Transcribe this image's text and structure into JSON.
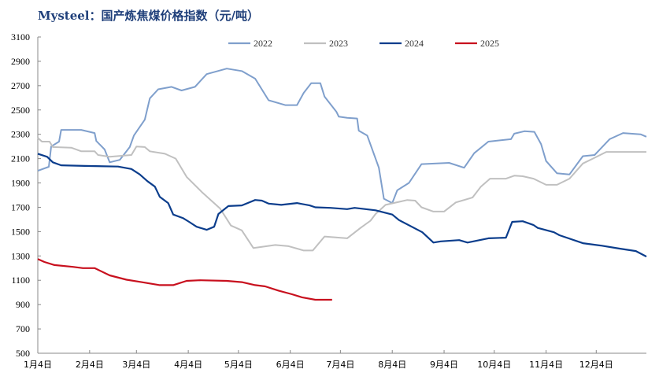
{
  "chart_data": {
    "type": "line",
    "title": "Mysteel：国产炼焦煤价格指数（元/吨）",
    "xlabel": "",
    "ylabel": "",
    "ylim": [
      500,
      3100
    ],
    "yticks": [
      500,
      700,
      900,
      1100,
      1300,
      1500,
      1700,
      1900,
      2100,
      2300,
      2500,
      2700,
      2900,
      3100
    ],
    "xlim_day_of_year": [
      0,
      364
    ],
    "xticks": [
      {
        "label": "1月4日",
        "day": 0
      },
      {
        "label": "2月4日",
        "day": 31
      },
      {
        "label": "3月4日",
        "day": 59
      },
      {
        "label": "4月4日",
        "day": 90
      },
      {
        "label": "5月4日",
        "day": 120
      },
      {
        "label": "6月4日",
        "day": 151
      },
      {
        "label": "7月4日",
        "day": 181
      },
      {
        "label": "8月4日",
        "day": 212
      },
      {
        "label": "9月4日",
        "day": 243
      },
      {
        "label": "10月4日",
        "day": 273
      },
      {
        "label": "11月4日",
        "day": 304
      },
      {
        "label": "12月4日",
        "day": 334
      }
    ],
    "grid": false,
    "legend_position": "top-center",
    "series": [
      {
        "name": "2022",
        "color": "#7f9fcc",
        "width": 2,
        "points": [
          [
            0,
            2000
          ],
          [
            6.6,
            2033
          ],
          [
            8,
            2200
          ],
          [
            12.7,
            2240
          ],
          [
            14,
            2336
          ],
          [
            26,
            2336
          ],
          [
            34,
            2310
          ],
          [
            35,
            2245
          ],
          [
            40,
            2175
          ],
          [
            43,
            2070
          ],
          [
            49,
            2090
          ],
          [
            55,
            2195
          ],
          [
            57.5,
            2290
          ],
          [
            64,
            2420
          ],
          [
            67,
            2595
          ],
          [
            72,
            2670
          ],
          [
            80,
            2690
          ],
          [
            86,
            2660
          ],
          [
            94,
            2690
          ],
          [
            101,
            2795
          ],
          [
            113,
            2840
          ],
          [
            122,
            2820
          ],
          [
            130,
            2757
          ],
          [
            138,
            2580
          ],
          [
            148,
            2540
          ],
          [
            155,
            2540
          ],
          [
            159,
            2640
          ],
          [
            163.5,
            2720
          ],
          [
            169,
            2720
          ],
          [
            171.5,
            2610
          ],
          [
            178.6,
            2485
          ],
          [
            180,
            2445
          ],
          [
            185,
            2435
          ],
          [
            191,
            2430
          ],
          [
            192,
            2330
          ],
          [
            197,
            2290
          ],
          [
            204,
            2025
          ],
          [
            207,
            1770
          ],
          [
            212,
            1735
          ],
          [
            215,
            1840
          ],
          [
            222,
            1900
          ],
          [
            229.5,
            2055
          ],
          [
            246,
            2065
          ],
          [
            255,
            2025
          ],
          [
            261,
            2145
          ],
          [
            269.5,
            2240
          ],
          [
            283,
            2260
          ],
          [
            285,
            2305
          ],
          [
            291,
            2325
          ],
          [
            297,
            2320
          ],
          [
            301,
            2220
          ],
          [
            304,
            2080
          ],
          [
            310.5,
            1980
          ],
          [
            318,
            1970
          ],
          [
            326,
            2120
          ],
          [
            333,
            2130
          ],
          [
            342,
            2260
          ],
          [
            350,
            2310
          ],
          [
            360.5,
            2300
          ],
          [
            364,
            2280
          ]
        ]
      },
      {
        "name": "2023",
        "color": "#c0c0c0",
        "width": 2,
        "points": [
          [
            0,
            2270
          ],
          [
            2.5,
            2240
          ],
          [
            7,
            2240
          ],
          [
            9,
            2195
          ],
          [
            20,
            2190
          ],
          [
            26,
            2160
          ],
          [
            34,
            2160
          ],
          [
            36,
            2130
          ],
          [
            43,
            2115
          ],
          [
            56,
            2130
          ],
          [
            59,
            2200
          ],
          [
            64,
            2195
          ],
          [
            67,
            2160
          ],
          [
            76,
            2140
          ],
          [
            82.5,
            2100
          ],
          [
            89,
            1950
          ],
          [
            98.5,
            1820
          ],
          [
            109,
            1690
          ],
          [
            115.5,
            1550
          ],
          [
            122,
            1510
          ],
          [
            129,
            1365
          ],
          [
            142,
            1390
          ],
          [
            150,
            1380
          ],
          [
            159,
            1345
          ],
          [
            164.5,
            1345
          ],
          [
            171.5,
            1460
          ],
          [
            185,
            1445
          ],
          [
            193,
            1530
          ],
          [
            199,
            1590
          ],
          [
            202,
            1645
          ],
          [
            208,
            1720
          ],
          [
            221,
            1760
          ],
          [
            225.7,
            1755
          ],
          [
            229.5,
            1700
          ],
          [
            236.6,
            1665
          ],
          [
            243,
            1665
          ],
          [
            250,
            1740
          ],
          [
            260,
            1780
          ],
          [
            265,
            1870
          ],
          [
            270.5,
            1935
          ],
          [
            280,
            1935
          ],
          [
            285,
            1960
          ],
          [
            290,
            1955
          ],
          [
            296.5,
            1935
          ],
          [
            304,
            1885
          ],
          [
            310.5,
            1885
          ],
          [
            318,
            1935
          ],
          [
            326,
            2060
          ],
          [
            332,
            2100
          ],
          [
            340,
            2155
          ],
          [
            364,
            2155
          ]
        ]
      },
      {
        "name": "2024",
        "color": "#0b3d8c",
        "width": 2.2,
        "points": [
          [
            0,
            2140
          ],
          [
            5.6,
            2115
          ],
          [
            9,
            2070
          ],
          [
            14,
            2045
          ],
          [
            28,
            2040
          ],
          [
            48,
            2035
          ],
          [
            56,
            2015
          ],
          [
            61,
            1970
          ],
          [
            65.5,
            1915
          ],
          [
            70,
            1870
          ],
          [
            73,
            1785
          ],
          [
            78,
            1735
          ],
          [
            81,
            1640
          ],
          [
            87,
            1610
          ],
          [
            90.5,
            1580
          ],
          [
            95,
            1540
          ],
          [
            101,
            1515
          ],
          [
            105.5,
            1540
          ],
          [
            108,
            1645
          ],
          [
            114,
            1710
          ],
          [
            122,
            1715
          ],
          [
            130,
            1760
          ],
          [
            134,
            1755
          ],
          [
            138,
            1730
          ],
          [
            145.6,
            1720
          ],
          [
            155,
            1735
          ],
          [
            162.6,
            1715
          ],
          [
            166,
            1700
          ],
          [
            175,
            1695
          ],
          [
            185,
            1685
          ],
          [
            189.5,
            1695
          ],
          [
            202,
            1675
          ],
          [
            212,
            1640
          ],
          [
            216,
            1595
          ],
          [
            230,
            1495
          ],
          [
            236.6,
            1410
          ],
          [
            241,
            1420
          ],
          [
            252,
            1430
          ],
          [
            257,
            1410
          ],
          [
            269.5,
            1445
          ],
          [
            280,
            1450
          ],
          [
            283.7,
            1580
          ],
          [
            290,
            1585
          ],
          [
            296.4,
            1555
          ],
          [
            299,
            1530
          ],
          [
            308.7,
            1495
          ],
          [
            312,
            1470
          ],
          [
            326,
            1405
          ],
          [
            337,
            1385
          ],
          [
            348,
            1360
          ],
          [
            357.7,
            1340
          ],
          [
            364,
            1295
          ]
        ]
      },
      {
        "name": "2025",
        "color": "#c8101e",
        "width": 2.2,
        "points": [
          [
            0,
            1275
          ],
          [
            4,
            1250
          ],
          [
            10,
            1225
          ],
          [
            21,
            1210
          ],
          [
            27,
            1200
          ],
          [
            34,
            1200
          ],
          [
            43,
            1140
          ],
          [
            53,
            1105
          ],
          [
            62,
            1085
          ],
          [
            73,
            1060
          ],
          [
            81,
            1060
          ],
          [
            89,
            1095
          ],
          [
            97,
            1100
          ],
          [
            113,
            1095
          ],
          [
            122,
            1085
          ],
          [
            130,
            1060
          ],
          [
            136,
            1050
          ],
          [
            144,
            1015
          ],
          [
            152,
            985
          ],
          [
            158,
            960
          ],
          [
            166,
            940
          ],
          [
            176,
            940
          ]
        ]
      }
    ]
  }
}
